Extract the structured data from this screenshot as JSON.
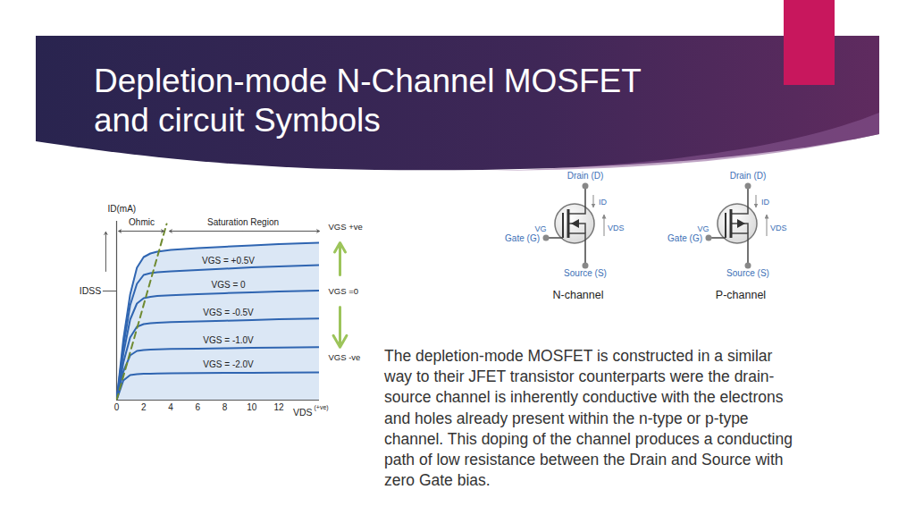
{
  "slide": {
    "title": [
      "Depletion-mode N-Channel MOSFET",
      "and circuit Symbols"
    ],
    "paragraph": [
      "The depletion-mode MOSFET is constructed in a similar",
      "way to their JFET transistor counterparts were the drain-",
      "source channel is inherently conductive with the electrons",
      "and holes already present within the n-type or p-type",
      "channel. This doping of the channel produces a conducting",
      "path of low resistance between the Drain and Source with",
      "zero Gate bias."
    ]
  },
  "symbols": [
    {
      "channel": "n",
      "label": "N-channel",
      "drain": "Drain (D)",
      "gate": "Gate (G)",
      "source": "Source (S)",
      "current": "ID",
      "gate_voltage": "VG",
      "drain_source_voltage": "VDS"
    },
    {
      "channel": "p",
      "label": "P-channel",
      "drain": "Drain (D)",
      "gate": "Gate (G)",
      "source": "Source (S)",
      "current": "ID",
      "gate_voltage": "VG",
      "drain_source_voltage": "VDS"
    }
  ],
  "chart_data": {
    "type": "line",
    "x_label": "VDS",
    "x_label_note": "(+ve)",
    "y_label": "ID(mA)",
    "xlim": [
      0,
      15
    ],
    "ylim": [
      0,
      10
    ],
    "xticks": [
      0,
      2,
      4,
      6,
      8,
      10,
      12
    ],
    "tick_labels": "x",
    "grid": false,
    "x": [
      0,
      0.5,
      1,
      1.5,
      2,
      2.5,
      3,
      4,
      6,
      8,
      10,
      12,
      15
    ],
    "series": [
      {
        "name": null,
        "color": "#2f65b1",
        "values": [
          0,
          3.4,
          5.9,
          7.4,
          8.0,
          8.2,
          8.3,
          8.4,
          8.5,
          8.58,
          8.65,
          8.72,
          8.8
        ]
      },
      {
        "name": "VGS = +0.5V",
        "color": "#2f65b1",
        "values": [
          0,
          3.0,
          5.3,
          6.5,
          7.0,
          7.1,
          7.15,
          7.2,
          7.28,
          7.35,
          7.42,
          7.48,
          7.55
        ]
      },
      {
        "name": "VGS = 0",
        "color": "#2f65b1",
        "values": [
          0,
          2.6,
          4.5,
          5.4,
          5.7,
          5.78,
          5.82,
          5.86,
          5.92,
          5.98,
          6.03,
          6.08,
          6.12
        ]
      },
      {
        "name": "VGS = -0.5V",
        "color": "#2f65b1",
        "values": [
          0,
          2.1,
          3.5,
          4.1,
          4.25,
          4.3,
          4.33,
          4.36,
          4.4,
          4.44,
          4.48,
          4.52,
          4.56
        ]
      },
      {
        "name": "VGS = -1.0V",
        "color": "#2f65b1",
        "values": [
          0,
          1.6,
          2.5,
          2.75,
          2.8,
          2.82,
          2.84,
          2.86,
          2.88,
          2.9,
          2.92,
          2.94,
          2.96
        ]
      },
      {
        "name": "VGS = -2.0V",
        "color": "#2f65b1",
        "values": [
          0,
          1.1,
          1.4,
          1.45,
          1.47,
          1.48,
          1.49,
          1.5,
          1.51,
          1.52,
          1.53,
          1.54,
          1.55
        ]
      }
    ],
    "pinch_off": {
      "x": [
        0,
        3.7
      ],
      "y": [
        0,
        9.85
      ],
      "color": "#6f8a30",
      "line_style": "dashed"
    },
    "regions": [
      "Ohmic",
      "Saturation Region"
    ],
    "idss": {
      "label": "IDSS",
      "value": 6.1
    },
    "vgs": {
      "labels": [
        "VGS +ve",
        "VGS =0",
        "VGS -ve"
      ],
      "color": "#9cc45a"
    }
  }
}
